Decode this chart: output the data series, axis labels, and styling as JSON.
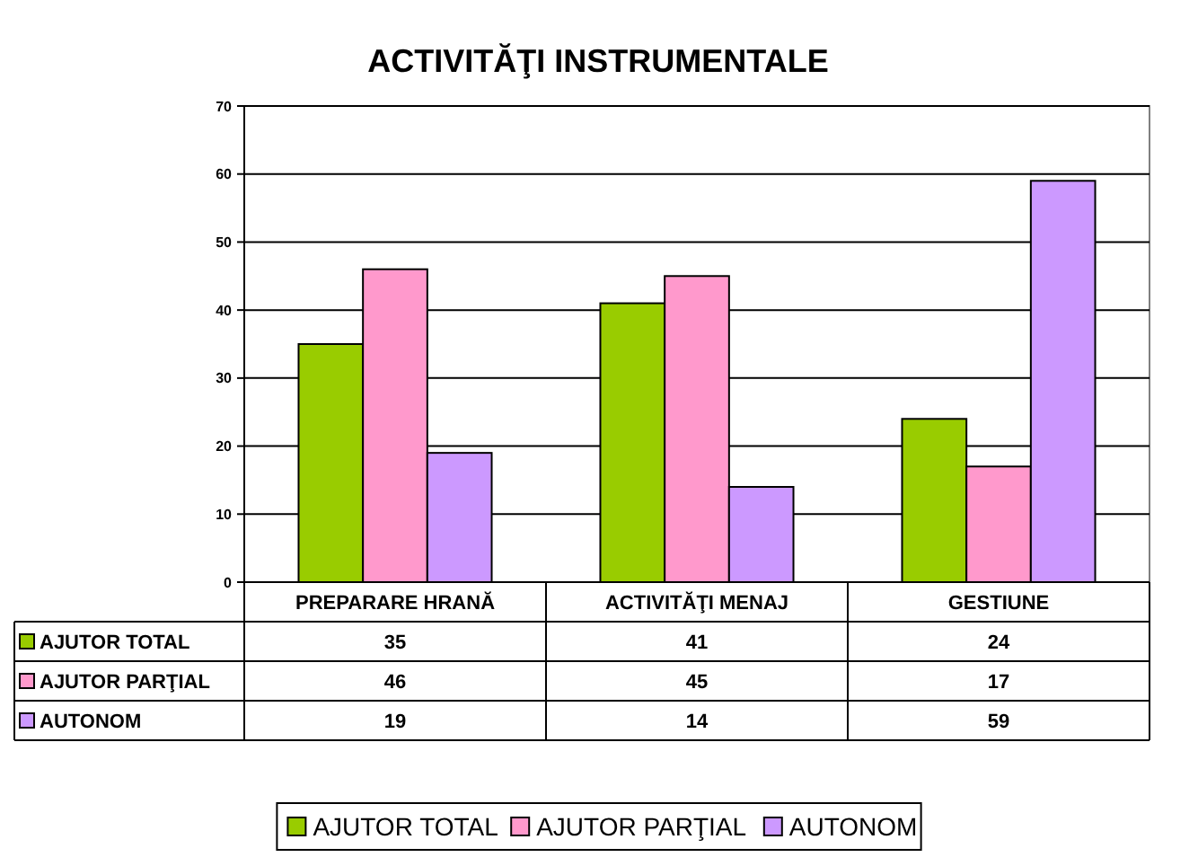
{
  "chart_data": {
    "type": "bar",
    "title": "ACTIVITĂŢI INSTRUMENTALE",
    "categories": [
      "PREPARARE HRANĂ",
      "ACTIVITĂŢI MENAJ",
      "GESTIUNE"
    ],
    "series": [
      {
        "name": "AJUTOR TOTAL",
        "color": "#99cc00",
        "values": [
          35,
          41,
          24
        ]
      },
      {
        "name": "AJUTOR PARŢIAL",
        "color": "#ff99cc",
        "values": [
          46,
          45,
          17
        ]
      },
      {
        "name": "AUTONOM",
        "color": "#cc99ff",
        "values": [
          19,
          14,
          59
        ]
      }
    ],
    "ylim": [
      0,
      70
    ],
    "yticks": [
      0,
      10,
      20,
      30,
      40,
      50,
      60,
      70
    ],
    "grid": "y",
    "legend": "bottom",
    "data_labels": true
  }
}
